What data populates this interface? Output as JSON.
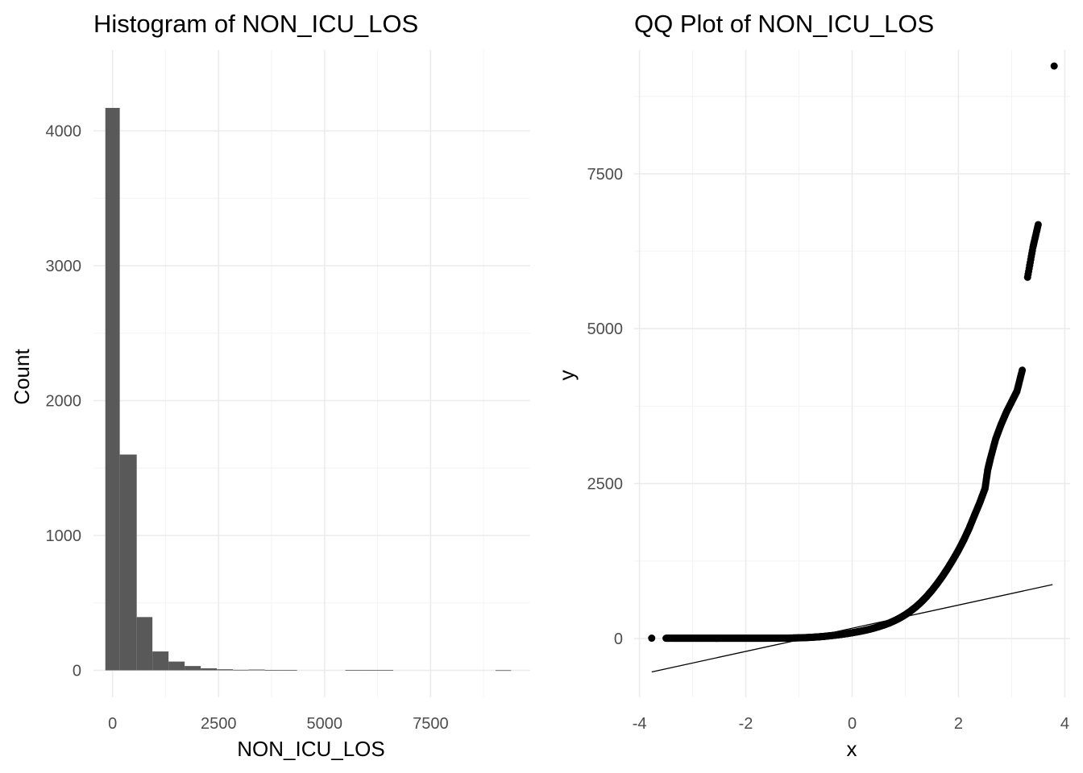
{
  "chart_data": [
    {
      "type": "bar",
      "subtype": "histogram",
      "title": "Histogram of NON_ICU_LOS",
      "xlabel": "NON_ICU_LOS",
      "ylabel": "Count",
      "xlim": [
        -450,
        9850
      ],
      "ylim": [
        -200,
        4600
      ],
      "x_ticks": [
        0,
        2500,
        5000,
        7500
      ],
      "x_tick_labels": [
        "0",
        "2500",
        "5000",
        "7500"
      ],
      "y_ticks": [
        0,
        1000,
        2000,
        3000,
        4000
      ],
      "y_tick_labels": [
        "0",
        "1000",
        "2000",
        "3000",
        "4000"
      ],
      "grid": true,
      "bar_color": "#595959",
      "bins": [
        {
          "x0": -170,
          "x1": 170,
          "count": 4170
        },
        {
          "x0": 170,
          "x1": 570,
          "count": 1600
        },
        {
          "x0": 570,
          "x1": 940,
          "count": 395
        },
        {
          "x0": 940,
          "x1": 1320,
          "count": 140
        },
        {
          "x0": 1320,
          "x1": 1700,
          "count": 65
        },
        {
          "x0": 1700,
          "x1": 2080,
          "count": 32
        },
        {
          "x0": 2080,
          "x1": 2460,
          "count": 15
        },
        {
          "x0": 2460,
          "x1": 2840,
          "count": 8
        },
        {
          "x0": 2840,
          "x1": 3210,
          "count": 4
        },
        {
          "x0": 3210,
          "x1": 3590,
          "count": 6
        },
        {
          "x0": 3590,
          "x1": 3970,
          "count": 3
        },
        {
          "x0": 3970,
          "x1": 4350,
          "count": 2
        },
        {
          "x0": 5490,
          "x1": 5860,
          "count": 2
        },
        {
          "x0": 5860,
          "x1": 6240,
          "count": 3
        },
        {
          "x0": 6240,
          "x1": 6620,
          "count": 2
        },
        {
          "x0": 9030,
          "x1": 9400,
          "count": 1
        }
      ]
    },
    {
      "type": "scatter",
      "subtype": "qq",
      "title": "QQ Plot of NON_ICU_LOS",
      "xlabel": "x",
      "ylabel": "y",
      "xlim": [
        -4.1,
        4.1
      ],
      "ylim": [
        -950,
        9500
      ],
      "x_ticks": [
        -4,
        -2,
        0,
        2,
        4
      ],
      "x_tick_labels": [
        "-4",
        "-2",
        "0",
        "2",
        "4"
      ],
      "y_ticks": [
        0,
        2500,
        5000,
        7500
      ],
      "y_tick_labels": [
        "0",
        "2500",
        "5000",
        "7500"
      ],
      "grid": true,
      "point_color": "#000000",
      "line_color": "#000000",
      "reference_line": {
        "x": [
          -3.77,
          3.77
        ],
        "y": [
          -540,
          870
        ]
      },
      "points": [
        [
          -3.77,
          5
        ],
        [
          -3.5,
          3
        ],
        [
          -3.4,
          4
        ],
        [
          -3.3,
          3
        ],
        [
          -3.2,
          3
        ],
        [
          -3.1,
          3
        ],
        [
          -3.0,
          3
        ],
        [
          -2.9,
          3
        ],
        [
          -2.8,
          3
        ],
        [
          -2.7,
          3
        ],
        [
          -2.6,
          3
        ],
        [
          -2.5,
          3
        ],
        [
          -2.4,
          3
        ],
        [
          -2.3,
          3
        ],
        [
          -2.2,
          3
        ],
        [
          -2.1,
          3
        ],
        [
          -2.0,
          3
        ],
        [
          -1.9,
          3
        ],
        [
          -1.8,
          3
        ],
        [
          -1.7,
          3
        ],
        [
          -1.6,
          4
        ],
        [
          -1.5,
          4
        ],
        [
          -1.4,
          4
        ],
        [
          -1.3,
          5
        ],
        [
          -1.2,
          6
        ],
        [
          -1.1,
          8
        ],
        [
          -1.0,
          10
        ],
        [
          -0.9,
          13
        ],
        [
          -0.8,
          17
        ],
        [
          -0.7,
          22
        ],
        [
          -0.6,
          28
        ],
        [
          -0.5,
          36
        ],
        [
          -0.4,
          45
        ],
        [
          -0.3,
          55
        ],
        [
          -0.2,
          66
        ],
        [
          -0.1,
          78
        ],
        [
          0.0,
          92
        ],
        [
          0.1,
          107
        ],
        [
          0.2,
          124
        ],
        [
          0.3,
          143
        ],
        [
          0.4,
          165
        ],
        [
          0.5,
          190
        ],
        [
          0.6,
          218
        ],
        [
          0.7,
          250
        ],
        [
          0.8,
          288
        ],
        [
          0.9,
          332
        ],
        [
          1.0,
          383
        ],
        [
          1.1,
          442
        ],
        [
          1.2,
          510
        ],
        [
          1.3,
          588
        ],
        [
          1.4,
          676
        ],
        [
          1.5,
          775
        ],
        [
          1.6,
          885
        ],
        [
          1.7,
          1005
        ],
        [
          1.8,
          1135
        ],
        [
          1.9,
          1275
        ],
        [
          2.0,
          1425
        ],
        [
          2.1,
          1590
        ],
        [
          2.2,
          1775
        ],
        [
          2.3,
          1985
        ],
        [
          2.4,
          2190
        ],
        [
          2.5,
          2420
        ],
        [
          2.55,
          2720
        ],
        [
          2.6,
          2900
        ],
        [
          2.7,
          3220
        ],
        [
          2.8,
          3450
        ],
        [
          2.9,
          3650
        ],
        [
          3.0,
          3820
        ],
        [
          3.1,
          3990
        ],
        [
          3.2,
          4330
        ],
        [
          3.3,
          5830
        ],
        [
          3.4,
          6310
        ],
        [
          3.5,
          6680
        ],
        [
          3.8,
          9240
        ]
      ]
    }
  ]
}
